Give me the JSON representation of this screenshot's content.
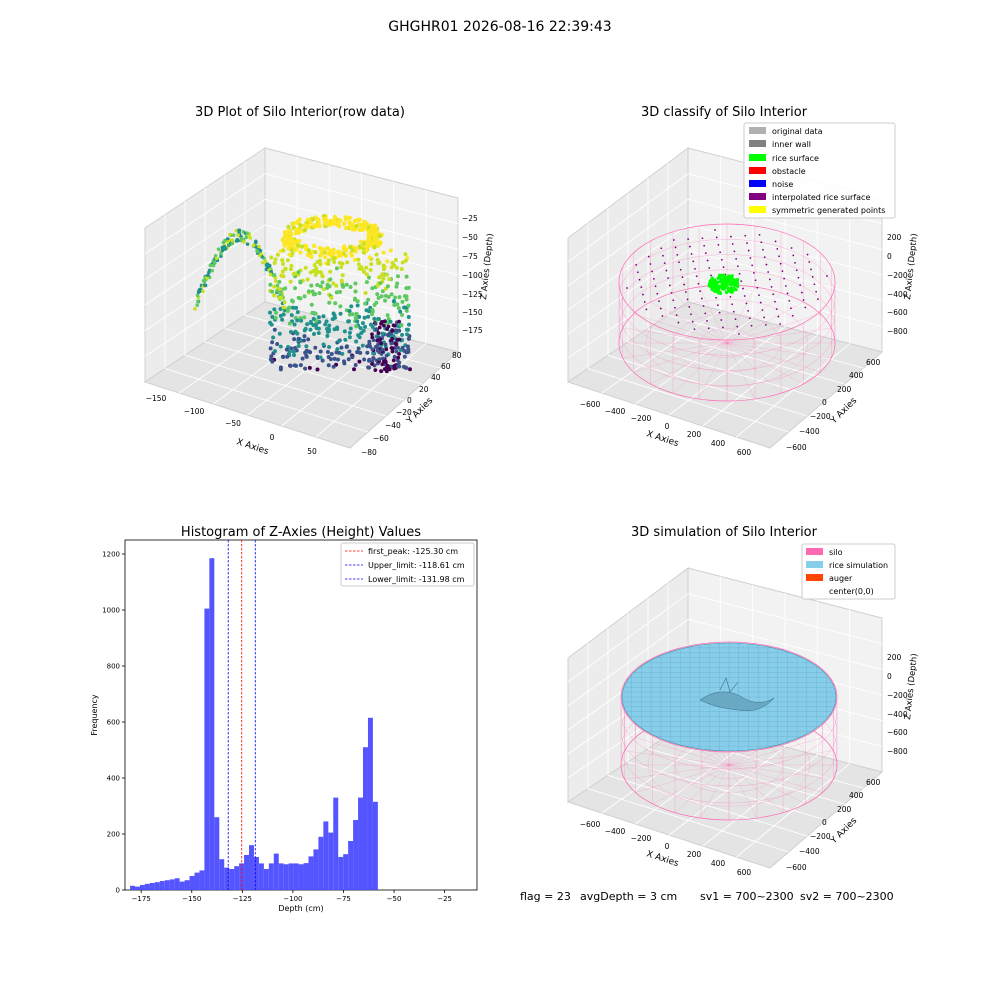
{
  "suptitle": "GHGHR01 2026-08-16 22:39:43",
  "footer": {
    "flag": "flag = 23",
    "avg_depth": "avgDepth = 3 cm",
    "sv1": "sv1 = 700~2300",
    "sv2": "sv2 = 700~2300"
  },
  "colors": {
    "original_data": "#b0b0b0",
    "inner_wall": "#808080",
    "rice_surface": "#00ff00",
    "obstacle": "#ff0000",
    "noise": "#0000ff",
    "interpolated": "#800080",
    "symmetric": "#ffff00",
    "silo": "#ff69b4",
    "rice_sim": "#87ceeb",
    "auger": "#ff4500",
    "hist_bar": "#4c4cff"
  },
  "chart_data": [
    {
      "type": "scatter",
      "projection": "3d",
      "title": "3D Plot of Silo Interior(row data)",
      "xlabel": "X Axies",
      "ylabel": "Y Axies",
      "zlabel": "Z Axies (Depth)",
      "x_ticks": [
        "−150",
        "−100",
        "−50",
        "0",
        "50"
      ],
      "y_ticks": [
        "−80",
        "−60",
        "−40",
        "−20",
        "0",
        "20",
        "40",
        "60",
        "80"
      ],
      "z_ticks": [
        "−25",
        "−50",
        "−75",
        "−100",
        "−125",
        "−150",
        "−175"
      ],
      "colormap": "viridis",
      "grid": true
    },
    {
      "type": "scatter",
      "projection": "3d",
      "title": "3D classify of Silo Interior",
      "xlabel": "X Axies",
      "ylabel": "Y Axies",
      "zlabel": "Z Axies (Depth)",
      "x_ticks": [
        "−600",
        "−400",
        "−200",
        "0",
        "200",
        "400",
        "600"
      ],
      "y_ticks": [
        "−600",
        "−400",
        "−200",
        "0",
        "200",
        "400",
        "600"
      ],
      "z_ticks": [
        "200",
        "0",
        "−200",
        "−400",
        "−600",
        "−800"
      ],
      "legend_position": "top-right",
      "legend": [
        {
          "label": "original data",
          "color": "#b0b0b0"
        },
        {
          "label": "inner wall",
          "color": "#808080"
        },
        {
          "label": "rice surface",
          "color": "#00ff00"
        },
        {
          "label": "obstacle",
          "color": "#ff0000"
        },
        {
          "label": "noise",
          "color": "#0000ff"
        },
        {
          "label": "interpolated rice surface",
          "color": "#800080"
        },
        {
          "label": "symmetric generated points",
          "color": "#ffff00"
        }
      ],
      "grid": true
    },
    {
      "type": "bar",
      "title": "Histogram of Z-Axies (Height) Values",
      "xlabel": "Depth (cm)",
      "ylabel": "Frequency",
      "xlim": [
        -183,
        -9
      ],
      "ylim": [
        0,
        1250
      ],
      "x_ticks": [
        -175,
        -150,
        -125,
        -100,
        -75,
        -50,
        -25
      ],
      "x_tick_labels": [
        "−175",
        "−150",
        "−125",
        "−100",
        "−75",
        "−50",
        "−25"
      ],
      "y_ticks": [
        0,
        200,
        400,
        600,
        800,
        1000,
        1200
      ],
      "y_tick_labels": [
        "0",
        "200",
        "400",
        "600",
        "800",
        "1000",
        "1200"
      ],
      "bin_start": -180.5,
      "bin_width": 2.45,
      "values": [
        15,
        12,
        18,
        22,
        25,
        28,
        32,
        35,
        38,
        42,
        30,
        35,
        50,
        62,
        70,
        1005,
        1185,
        260,
        110,
        80,
        75,
        85,
        95,
        125,
        160,
        118,
        95,
        75,
        95,
        130,
        95,
        92,
        95,
        95,
        92,
        96,
        120,
        145,
        190,
        245,
        205,
        330,
        118,
        128,
        175,
        250,
        330,
        510,
        615,
        315
      ],
      "vlines": [
        {
          "label": "first_peak: -125.30 cm",
          "x": -125.3,
          "color": "#ff0000"
        },
        {
          "label": "Upper_limit: -118.61 cm",
          "x": -118.61,
          "color": "#0000ff"
        },
        {
          "label": "Lower_limit: -131.98 cm",
          "x": -131.98,
          "color": "#0000ff"
        }
      ],
      "legend_position": "top-right"
    },
    {
      "type": "surface",
      "projection": "3d",
      "title": "3D simulation of Silo Interior",
      "xlabel": "X Axies",
      "ylabel": "Y Axies",
      "zlabel": "Z Axies (Depth)",
      "x_ticks": [
        "−600",
        "−400",
        "−200",
        "0",
        "200",
        "400",
        "600"
      ],
      "y_ticks": [
        "−600",
        "−400",
        "−200",
        "0",
        "200",
        "400",
        "600"
      ],
      "z_ticks": [
        "200",
        "0",
        "−200",
        "−400",
        "−600",
        "−800"
      ],
      "legend_position": "top-right",
      "legend": [
        {
          "label": "silo",
          "color": "#ff69b4"
        },
        {
          "label": "rice simulation",
          "color": "#87ceeb"
        },
        {
          "label": "auger",
          "color": "#ff4500"
        },
        {
          "label": "center(0,0)",
          "color": ""
        }
      ],
      "grid": true
    }
  ]
}
